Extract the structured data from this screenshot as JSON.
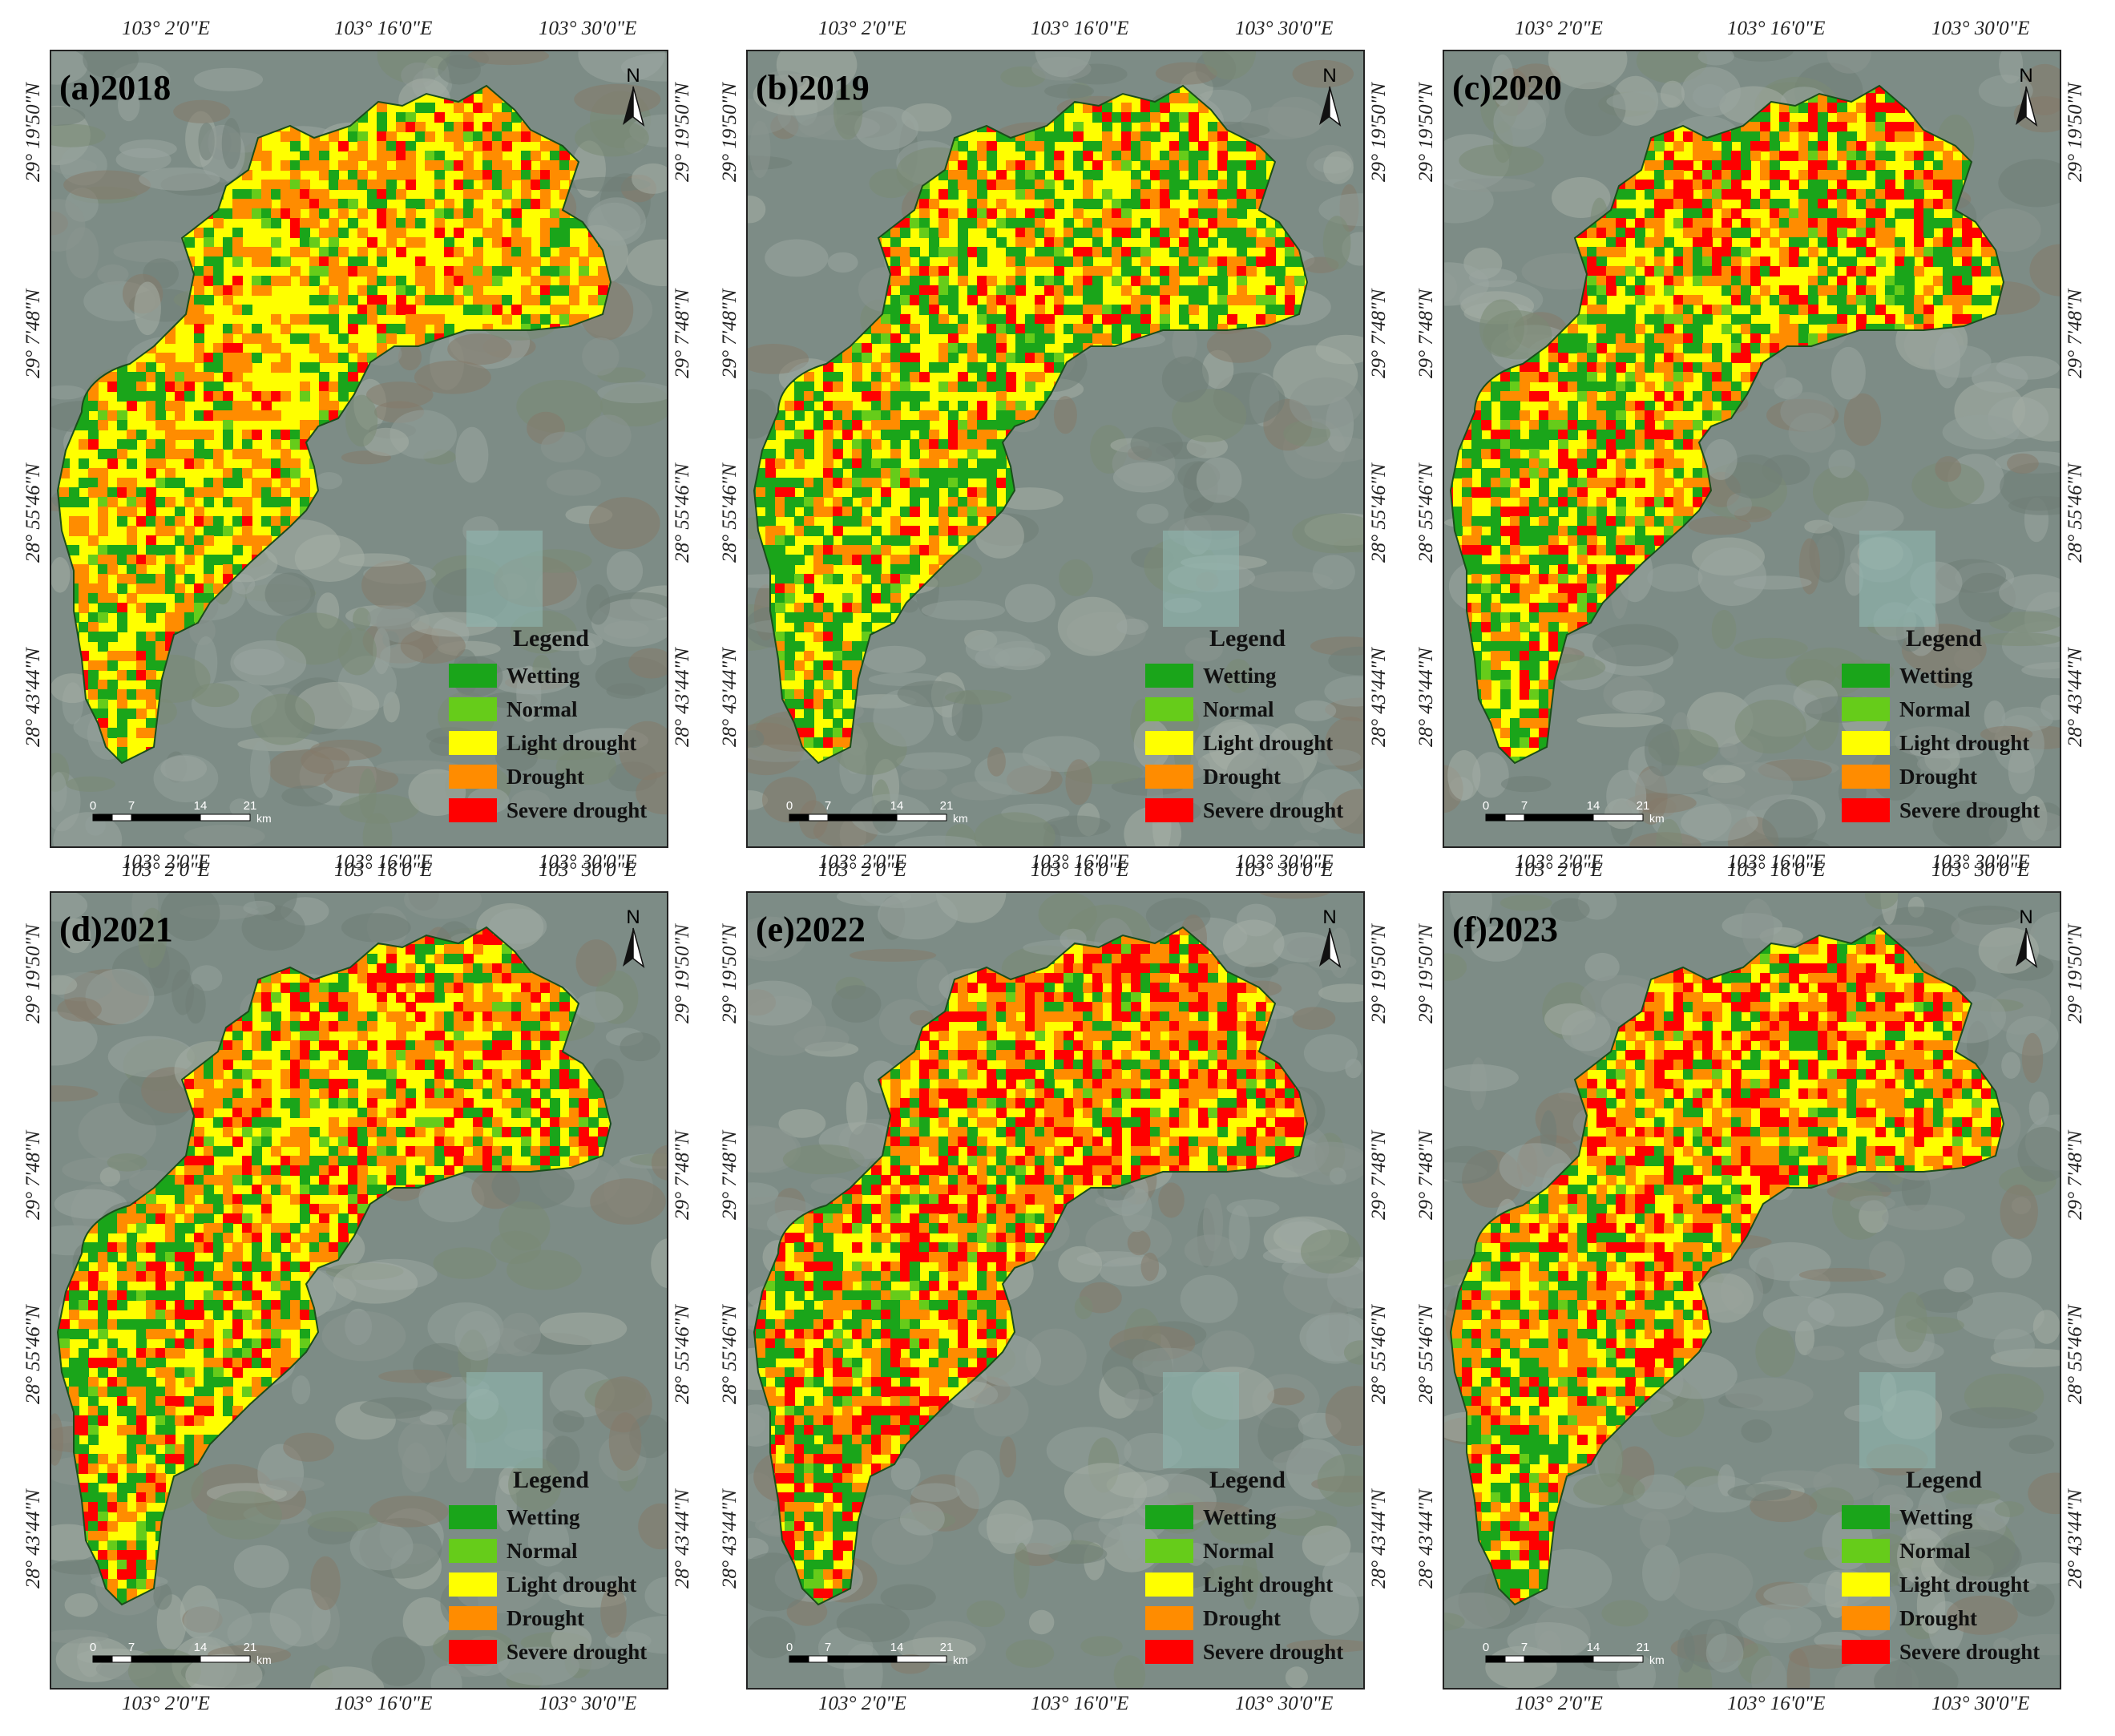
{
  "panels": [
    {
      "title": "(a)2018"
    },
    {
      "title": "(b)2019"
    },
    {
      "title": "(c)2020"
    },
    {
      "title": "(d)2021"
    },
    {
      "title": "(e)2022"
    },
    {
      "title": "(f)2023"
    }
  ],
  "lon_ticks": [
    "103° 2'0\"E",
    "103° 16'0\"E",
    "103° 30'0\"E"
  ],
  "lat_ticks": [
    "29° 19'50\"N",
    "29° 7'48\"N",
    "28° 55'46\"N",
    "28° 43'44\"N"
  ],
  "legend": {
    "title": "Legend",
    "items": [
      {
        "label": "Wetting",
        "color": "#1aa51a"
      },
      {
        "label": "Normal",
        "color": "#66cc1a"
      },
      {
        "label": "Light drought",
        "color": "#ffff00"
      },
      {
        "label": "Drought",
        "color": "#ff8c00"
      },
      {
        "label": "Severe drought",
        "color": "#ff0000"
      }
    ]
  },
  "north_label": "N",
  "scale": {
    "ticks": [
      "0",
      "7",
      "14",
      "21"
    ],
    "unit": "km"
  }
}
